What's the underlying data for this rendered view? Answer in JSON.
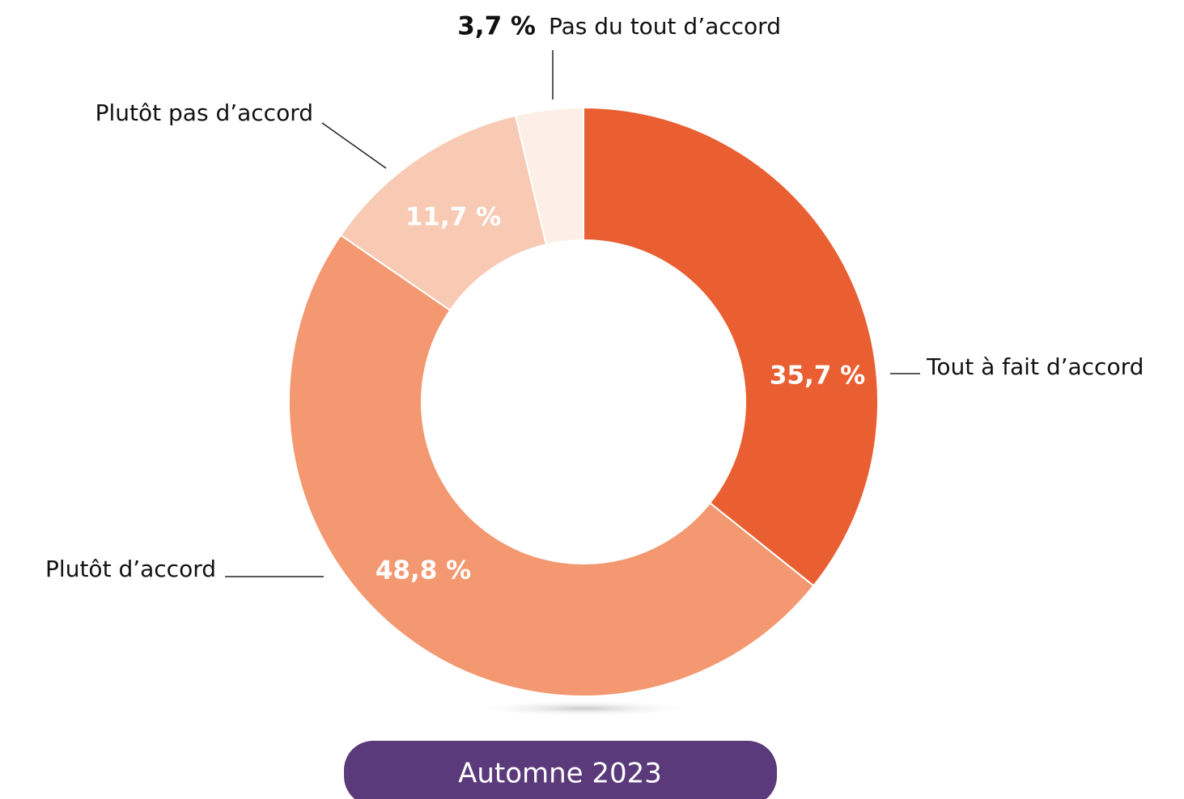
{
  "chart_data": {
    "type": "donut",
    "categories": [
      "Tout à fait d’accord",
      "Plutôt d’accord",
      "Plutôt pas d’accord",
      "Pas du tout d’accord"
    ],
    "values": [
      35.7,
      48.8,
      11.7,
      3.7
    ],
    "value_labels": [
      "35,7 %",
      "48,8 %",
      "11,7 %",
      "3,7 %"
    ],
    "colors": [
      "#e95f32",
      "#f39870",
      "#f8cab4",
      "#fdefe7"
    ],
    "footer": "Automne 2023"
  }
}
